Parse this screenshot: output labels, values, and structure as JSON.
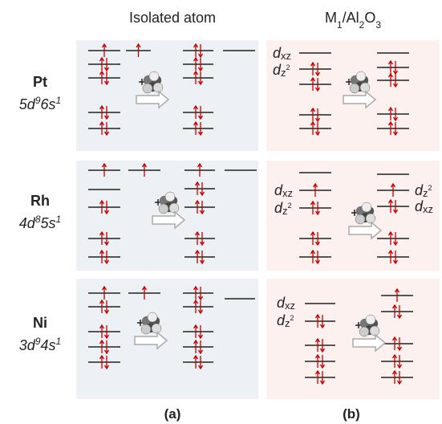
{
  "header": {
    "col_a": "Isolated atom",
    "col_b": [
      "M",
      "1",
      "/Al",
      "2",
      "O",
      "3"
    ]
  },
  "rows": [
    {
      "element": "Pt",
      "config": [
        "5d",
        "9",
        "6s",
        "1"
      ]
    },
    {
      "element": "Rh",
      "config": [
        "4d",
        "8",
        "5s",
        "1"
      ]
    },
    {
      "element": "Ni",
      "config": [
        "3d",
        "9",
        "4s",
        "1"
      ]
    }
  ],
  "orbital_labels": {
    "dxz": [
      "d",
      "xz"
    ],
    "dz2": [
      "d",
      "z",
      "2"
    ]
  },
  "panel_labels": [
    "(a)",
    "(b)"
  ]
}
